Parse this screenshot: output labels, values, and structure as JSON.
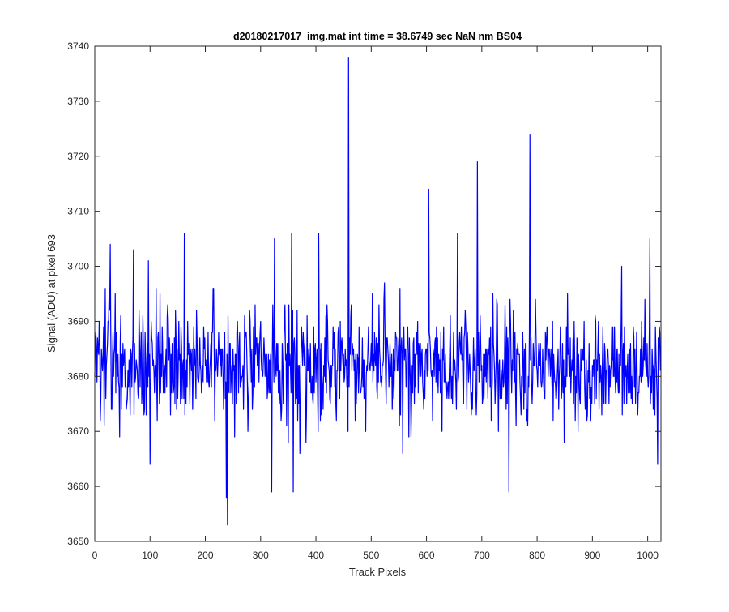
{
  "chart_data": {
    "type": "line",
    "title": "d20180217017_img.mat int time = 38.6749 sec  NaN nm BS04",
    "xlabel": "Track Pixels",
    "ylabel": "Signal (ADU) at pixel 693",
    "xlim": [
      0,
      1024
    ],
    "ylim": [
      3650,
      3740
    ],
    "xticks": [
      0,
      100,
      200,
      300,
      400,
      500,
      600,
      700,
      800,
      900,
      1000
    ],
    "yticks": [
      3650,
      3660,
      3670,
      3680,
      3690,
      3700,
      3710,
      3720,
      3730,
      3740
    ],
    "grid": false,
    "line_color": "#0000ff",
    "series": [
      {
        "n_points": 1024,
        "baseline": 3682,
        "range": [
          3653,
          3738
        ],
        "peaks": [
          {
            "x": 28,
            "y": 3704
          },
          {
            "x": 70,
            "y": 3703
          },
          {
            "x": 97,
            "y": 3701
          },
          {
            "x": 162,
            "y": 3706
          },
          {
            "x": 238,
            "y": 3658
          },
          {
            "x": 240,
            "y": 3653
          },
          {
            "x": 320,
            "y": 3659
          },
          {
            "x": 325,
            "y": 3705
          },
          {
            "x": 356,
            "y": 3706
          },
          {
            "x": 359,
            "y": 3659
          },
          {
            "x": 405,
            "y": 3706
          },
          {
            "x": 459,
            "y": 3738
          },
          {
            "x": 604,
            "y": 3714
          },
          {
            "x": 656,
            "y": 3706
          },
          {
            "x": 692,
            "y": 3719
          },
          {
            "x": 787,
            "y": 3724
          },
          {
            "x": 749,
            "y": 3659
          },
          {
            "x": 1004,
            "y": 3705
          },
          {
            "x": 1018,
            "y": 3664
          }
        ]
      }
    ]
  }
}
